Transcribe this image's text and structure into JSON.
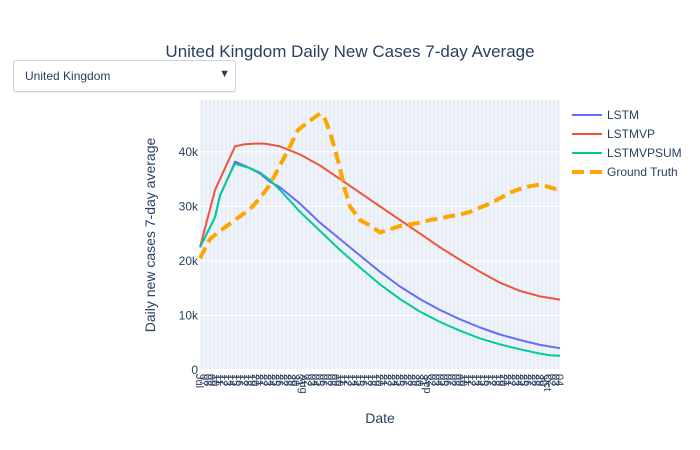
{
  "dropdown": {
    "selected": "United Kingdom",
    "arrow_icon": "triangle-down"
  },
  "chart_data": {
    "type": "line",
    "title": "United Kingdom Daily New Cases 7-day Average",
    "xlabel": "Date",
    "ylabel": "Daily new cases 7-day average",
    "x": [
      0,
      4,
      8,
      12,
      16,
      20,
      24,
      28,
      32,
      36,
      40,
      44,
      48,
      52,
      56,
      60,
      64,
      68,
      72,
      76,
      80,
      84,
      88,
      92,
      96,
      100,
      104,
      108,
      112,
      116,
      120,
      124,
      128,
      132,
      136,
      140,
      144,
      148,
      152,
      156,
      160,
      164,
      168,
      172,
      176,
      180,
      184,
      188,
      192,
      196,
      200,
      204,
      208,
      212,
      216,
      220,
      224,
      228,
      232,
      236,
      240,
      244,
      248,
      252,
      256,
      260,
      264,
      268,
      272,
      276,
      280,
      284,
      288,
      292,
      296,
      300,
      304,
      308,
      312,
      316,
      320,
      324,
      328,
      332,
      336,
      340,
      344,
      348,
      352,
      356,
      360
    ],
    "x_tick_labels": [
      "Jul",
      "07",
      "08",
      "09",
      "10",
      "11",
      "12",
      "13",
      "14",
      "15",
      "16",
      "17",
      "18",
      "19",
      "20",
      "21",
      "22",
      "23",
      "24",
      "25",
      "26",
      "27",
      "28",
      "29",
      "30",
      "31",
      "Aug",
      "02",
      "03",
      "04",
      "05",
      "06",
      "07",
      "08",
      "09",
      "10",
      "11",
      "12",
      "13",
      "14",
      "15",
      "16",
      "17",
      "18",
      "19",
      "20",
      "21",
      "22",
      "23",
      "24",
      "25",
      "26",
      "27",
      "28",
      "29",
      "30",
      "31",
      "Sep",
      "02",
      "03",
      "04",
      "05",
      "06",
      "07",
      "08",
      "09",
      "10",
      "11",
      "12",
      "13",
      "14",
      "15",
      "16",
      "17",
      "18",
      "19",
      "20",
      "21",
      "22",
      "23",
      "24",
      "25",
      "26",
      "27",
      "28",
      "29",
      "30",
      "Oct",
      "02",
      "03",
      "04"
    ],
    "xlim": [
      0,
      360
    ],
    "ylim": [
      0,
      49500
    ],
    "y_ticks": [
      0,
      10000,
      20000,
      30000,
      40000
    ],
    "y_tick_labels": [
      "0",
      "10k",
      "20k",
      "30k",
      "40k"
    ],
    "grid": true,
    "legend_position": "top-right",
    "series": [
      {
        "name": "LSTM",
        "color": "#636efa",
        "dash": "solid",
        "values": [
          [
            0,
            22500
          ],
          [
            15,
            28000
          ],
          [
            20,
            32000
          ],
          [
            30,
            36000
          ],
          [
            35,
            38200
          ],
          [
            50,
            37000
          ],
          [
            60,
            36000
          ],
          [
            70,
            34500
          ],
          [
            80,
            33500
          ],
          [
            100,
            30500
          ],
          [
            120,
            27000
          ],
          [
            140,
            24000
          ],
          [
            160,
            21000
          ],
          [
            180,
            18000
          ],
          [
            200,
            15300
          ],
          [
            220,
            13000
          ],
          [
            240,
            11000
          ],
          [
            260,
            9300
          ],
          [
            280,
            7800
          ],
          [
            300,
            6500
          ],
          [
            320,
            5500
          ],
          [
            340,
            4600
          ],
          [
            360,
            4000
          ]
        ]
      },
      {
        "name": "LSTMVP",
        "color": "#ef553b",
        "dash": "solid",
        "values": [
          [
            0,
            22500
          ],
          [
            15,
            33000
          ],
          [
            25,
            37000
          ],
          [
            35,
            41000
          ],
          [
            45,
            41400
          ],
          [
            55,
            41500
          ],
          [
            65,
            41500
          ],
          [
            80,
            41000
          ],
          [
            100,
            39500
          ],
          [
            120,
            37500
          ],
          [
            140,
            35000
          ],
          [
            160,
            32500
          ],
          [
            180,
            30000
          ],
          [
            200,
            27500
          ],
          [
            220,
            25000
          ],
          [
            240,
            22500
          ],
          [
            260,
            20200
          ],
          [
            280,
            18000
          ],
          [
            300,
            16000
          ],
          [
            320,
            14500
          ],
          [
            340,
            13500
          ],
          [
            360,
            12900
          ]
        ]
      },
      {
        "name": "LSTMVPSUM",
        "color": "#00cc96",
        "dash": "solid",
        "values": [
          [
            0,
            22500
          ],
          [
            15,
            28000
          ],
          [
            20,
            32000
          ],
          [
            30,
            36000
          ],
          [
            35,
            37800
          ],
          [
            50,
            37000
          ],
          [
            60,
            36200
          ],
          [
            70,
            34800
          ],
          [
            80,
            33000
          ],
          [
            100,
            29000
          ],
          [
            120,
            25500
          ],
          [
            140,
            22000
          ],
          [
            160,
            18800
          ],
          [
            180,
            15700
          ],
          [
            200,
            13000
          ],
          [
            220,
            10700
          ],
          [
            240,
            8800
          ],
          [
            260,
            7200
          ],
          [
            280,
            5800
          ],
          [
            300,
            4700
          ],
          [
            320,
            3800
          ],
          [
            340,
            3000
          ],
          [
            350,
            2700
          ],
          [
            360,
            2600
          ]
        ]
      },
      {
        "name": "Ground Truth",
        "color": "#ffa500",
        "dash": "dash",
        "values": [
          [
            0,
            20500
          ],
          [
            10,
            24000
          ],
          [
            20,
            25500
          ],
          [
            35,
            27500
          ],
          [
            50,
            29500
          ],
          [
            60,
            31500
          ],
          [
            70,
            34000
          ],
          [
            80,
            37500
          ],
          [
            90,
            41000
          ],
          [
            98,
            44000
          ],
          [
            105,
            45000
          ],
          [
            112,
            46000
          ],
          [
            120,
            47000
          ],
          [
            125,
            46000
          ],
          [
            130,
            43500
          ],
          [
            135,
            40500
          ],
          [
            140,
            37000
          ],
          [
            145,
            33000
          ],
          [
            150,
            30000
          ],
          [
            160,
            27500
          ],
          [
            170,
            26500
          ],
          [
            180,
            25200
          ],
          [
            190,
            25800
          ],
          [
            200,
            26400
          ],
          [
            210,
            26700
          ],
          [
            220,
            27000
          ],
          [
            230,
            27500
          ],
          [
            240,
            27800
          ],
          [
            250,
            28200
          ],
          [
            260,
            28500
          ],
          [
            270,
            29000
          ],
          [
            280,
            29800
          ],
          [
            290,
            30500
          ],
          [
            300,
            31500
          ],
          [
            310,
            32500
          ],
          [
            320,
            33200
          ],
          [
            330,
            33700
          ],
          [
            340,
            34000
          ],
          [
            350,
            33500
          ],
          [
            355,
            33200
          ],
          [
            360,
            33300
          ]
        ]
      }
    ]
  }
}
